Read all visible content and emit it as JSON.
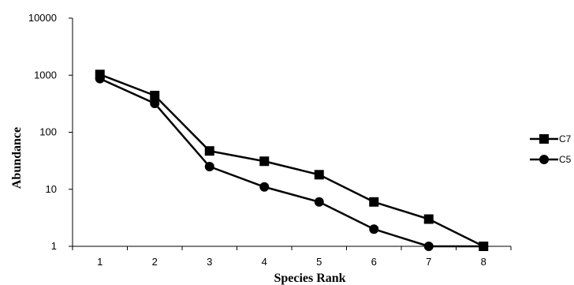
{
  "chart_data": {
    "type": "line",
    "title": "",
    "xlabel": "Species Rank",
    "ylabel": "Abundance",
    "yscale": "log",
    "ylim": [
      1,
      10000
    ],
    "xlim": [
      0.5,
      8.5
    ],
    "x": [
      1,
      2,
      3,
      4,
      5,
      6,
      7,
      8
    ],
    "x_ticks": [
      "1",
      "2",
      "3",
      "4",
      "5",
      "6",
      "7",
      "8"
    ],
    "y_ticks": [
      {
        "value": 1,
        "label": "1"
      },
      {
        "value": 10,
        "label": "10"
      },
      {
        "value": 100,
        "label": "100"
      },
      {
        "value": 1000,
        "label": "1000"
      },
      {
        "value": 10000,
        "label": "10000"
      }
    ],
    "grid": false,
    "legend_position": "right",
    "series": [
      {
        "name": "C7",
        "marker": "square",
        "color": "#000000",
        "values": [
          1030,
          440,
          47,
          31,
          18,
          6,
          3,
          1
        ]
      },
      {
        "name": "C5",
        "marker": "circle",
        "color": "#000000",
        "values": [
          870,
          320,
          25,
          11,
          6,
          2,
          1,
          1
        ]
      }
    ]
  }
}
